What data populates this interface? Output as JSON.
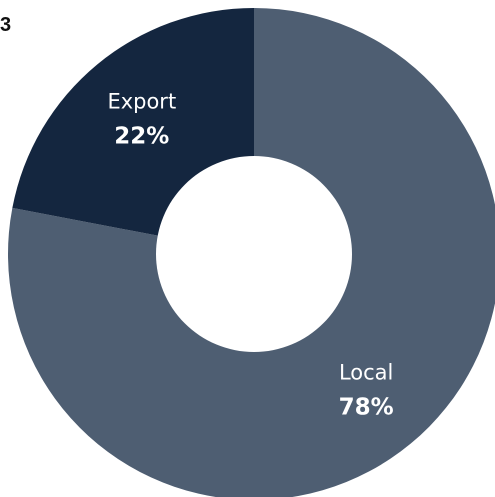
{
  "page_marker": "3",
  "chart_data": {
    "type": "pie",
    "variant": "donut",
    "title": "",
    "slices": [
      {
        "label": "Local",
        "value": 78,
        "display": "78%",
        "color": "#4e5e72"
      },
      {
        "label": "Export",
        "value": 22,
        "display": "22%",
        "color": "#14263f"
      }
    ],
    "start_angle_deg": 0,
    "direction": "clockwise",
    "legend": "none"
  }
}
